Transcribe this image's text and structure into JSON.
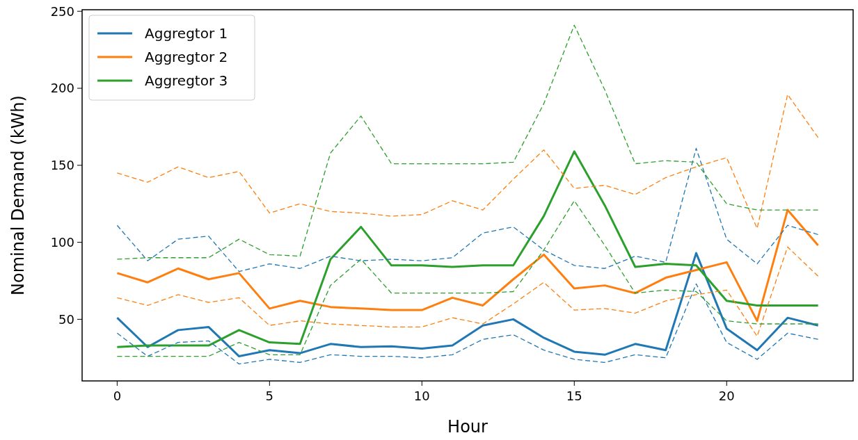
{
  "chart_data": {
    "type": "line",
    "xlabel": "Hour",
    "ylabel": "Nominal Demand (kWh)",
    "x": [
      0,
      1,
      2,
      3,
      4,
      5,
      6,
      7,
      8,
      9,
      10,
      11,
      12,
      13,
      14,
      15,
      16,
      17,
      18,
      19,
      20,
      21,
      22,
      23
    ],
    "xlim": [
      -1.15,
      24.15
    ],
    "xticks": [
      0,
      5,
      10,
      15,
      20
    ],
    "ylim": [
      10,
      251
    ],
    "yticks": [
      50,
      100,
      150,
      200,
      250
    ],
    "grid": false,
    "legend": "top left",
    "marker": "none",
    "series": [
      {
        "name": "Aggregtor 1",
        "color": "#1f77b4",
        "line_style": "solid",
        "values": [
          51,
          32,
          43,
          45,
          26,
          30,
          28,
          34,
          32,
          32.5,
          31,
          33,
          46,
          50,
          38,
          29,
          27,
          34,
          30,
          93,
          44,
          30,
          51,
          46
        ]
      },
      {
        "name": "Aggregtor 2",
        "color": "#ff7f0e",
        "line_style": "solid",
        "values": [
          80,
          74,
          83,
          76,
          80,
          57,
          62,
          58,
          57,
          56,
          56,
          64,
          59,
          76,
          92,
          70,
          72,
          67,
          77,
          82,
          87,
          49,
          121,
          98
        ]
      },
      {
        "name": "Aggregtor 3",
        "color": "#2ca02c",
        "line_style": "solid",
        "values": [
          32,
          33,
          33,
          33,
          43,
          35,
          34,
          89,
          110,
          85,
          85,
          84,
          85,
          85,
          117,
          159,
          124,
          84,
          86,
          85,
          62,
          59,
          59,
          59
        ]
      },
      {
        "color": "#1f77b4",
        "line_style": "dashed",
        "values": [
          111,
          88,
          102,
          104,
          81,
          86,
          83,
          91,
          88,
          89,
          88,
          90,
          106,
          110,
          95,
          85,
          83,
          91,
          87,
          161,
          102,
          86,
          111,
          105
        ]
      },
      {
        "color": "#1f77b4",
        "line_style": "dashed",
        "values": [
          41,
          26,
          35,
          36,
          21,
          24,
          22,
          27,
          26,
          26,
          25,
          27,
          37,
          40,
          30,
          24,
          22,
          27,
          25,
          73,
          35,
          24,
          41,
          37
        ]
      },
      {
        "color": "#ff7f0e",
        "line_style": "dashed",
        "values": [
          145,
          139,
          149,
          142,
          146,
          119,
          125,
          120,
          119,
          117,
          118,
          127,
          121,
          141,
          160,
          135,
          137,
          131,
          142,
          149,
          155,
          109,
          196,
          168
        ]
      },
      {
        "color": "#ff7f0e",
        "line_style": "dashed",
        "values": [
          64,
          59,
          66,
          61,
          64,
          46,
          49,
          47,
          46,
          45,
          45,
          51,
          47,
          60,
          74,
          56,
          57,
          54,
          62,
          66,
          69,
          39,
          97,
          78
        ]
      },
      {
        "color": "#2ca02c",
        "line_style": "dashed",
        "values": [
          89,
          90,
          90,
          90,
          102,
          92,
          91,
          158,
          182,
          151,
          151,
          151,
          151,
          152,
          190,
          241,
          199,
          151,
          153,
          152,
          125,
          121,
          121,
          121
        ]
      },
      {
        "color": "#2ca02c",
        "line_style": "dashed",
        "values": [
          26,
          26,
          26,
          26,
          35,
          27,
          27,
          72,
          89,
          67,
          67,
          67,
          67,
          68,
          95,
          127,
          98,
          67,
          69,
          68,
          49,
          47,
          47,
          47
        ]
      }
    ]
  }
}
